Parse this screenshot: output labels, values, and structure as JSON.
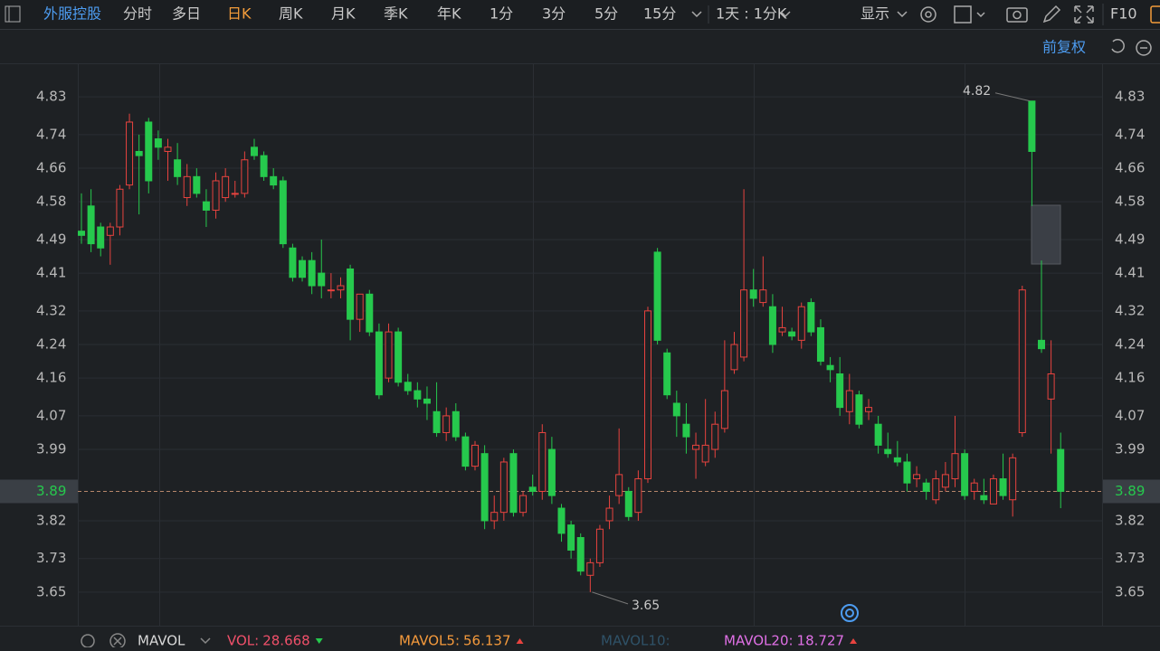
{
  "toolbar": {
    "stock": "外服控股",
    "tabs": [
      "分时",
      "多日",
      "日K",
      "周K",
      "月K",
      "季K",
      "年K",
      "1分",
      "3分",
      "5分",
      "15分"
    ],
    "interval": "1天 : 1分K",
    "display": "显示",
    "f10": "F10",
    "adjust": "前复权"
  },
  "chart_data": {
    "type": "candlestick",
    "open": [
      4.51,
      4.57,
      4.52,
      4.5,
      4.52,
      4.62,
      4.7,
      4.77,
      4.73,
      4.7,
      4.68,
      4.59,
      4.64,
      4.58,
      4.56,
      4.59,
      4.6,
      4.6,
      4.71,
      4.69,
      4.64,
      4.63,
      4.47,
      4.44,
      4.44,
      4.41,
      4.37,
      4.37,
      4.42,
      4.3,
      4.36,
      4.27,
      4.16,
      4.27,
      4.15,
      4.13,
      4.11,
      4.08,
      4.03,
      4.08,
      4.02,
      3.95,
      3.98,
      3.82,
      3.84,
      3.98,
      3.84,
      3.9,
      3.89,
      3.99,
      3.85,
      3.81,
      3.78,
      3.69,
      3.72,
      3.82,
      3.88,
      3.89,
      3.84,
      3.92,
      4.46,
      4.22,
      4.1,
      4.05,
      3.99,
      3.96,
      3.99,
      4.04,
      4.18,
      4.21,
      4.37,
      4.34,
      4.33,
      4.27,
      4.27,
      4.25,
      4.34,
      4.28,
      4.19,
      4.17,
      4.08,
      4.12,
      4.08,
      4.05,
      3.99,
      3.97,
      3.96,
      3.92,
      3.91,
      3.87,
      3.9,
      3.92,
      3.98,
      3.89,
      3.88,
      3.86,
      3.92,
      3.87,
      4.03,
      4.82,
      4.25,
      4.11,
      3.99
    ],
    "high": [
      4.6,
      4.61,
      4.53,
      4.53,
      4.62,
      4.79,
      4.74,
      4.78,
      4.75,
      4.73,
      4.72,
      4.67,
      4.66,
      4.61,
      4.65,
      4.66,
      4.63,
      4.7,
      4.73,
      4.7,
      4.66,
      4.64,
      4.48,
      4.45,
      4.46,
      4.49,
      4.41,
      4.4,
      4.43,
      4.36,
      4.37,
      4.29,
      4.29,
      4.28,
      4.17,
      4.15,
      4.14,
      4.15,
      4.09,
      4.1,
      4.03,
      4.01,
      4.0,
      3.88,
      3.97,
      3.99,
      3.89,
      3.93,
      4.05,
      4.02,
      3.86,
      3.82,
      3.79,
      3.73,
      3.81,
      3.88,
      4.04,
      3.9,
      3.94,
      4.33,
      4.47,
      4.23,
      4.13,
      4.1,
      4.03,
      4.11,
      4.08,
      4.25,
      4.27,
      4.61,
      4.42,
      4.45,
      4.36,
      4.33,
      4.28,
      4.34,
      4.35,
      4.3,
      4.21,
      4.21,
      4.17,
      4.13,
      4.11,
      4.07,
      4.03,
      4.01,
      3.98,
      3.95,
      3.92,
      3.94,
      3.96,
      4.07,
      3.99,
      3.92,
      3.92,
      3.93,
      3.98,
      3.98,
      4.38,
      4.82,
      4.44,
      4.25,
      4.03
    ],
    "low": [
      4.48,
      4.46,
      4.45,
      4.43,
      4.5,
      4.61,
      4.55,
      4.6,
      4.68,
      4.63,
      4.62,
      4.57,
      4.59,
      4.52,
      4.54,
      4.58,
      4.59,
      4.59,
      4.68,
      4.63,
      4.61,
      4.47,
      4.39,
      4.39,
      4.36,
      4.35,
      4.35,
      4.35,
      4.25,
      4.27,
      4.26,
      4.11,
      4.15,
      4.14,
      4.12,
      4.09,
      4.06,
      4.02,
      4.01,
      4.01,
      3.94,
      3.94,
      3.8,
      3.8,
      3.82,
      3.83,
      3.83,
      3.88,
      3.87,
      3.86,
      3.77,
      3.73,
      3.69,
      3.65,
      3.71,
      3.8,
      3.86,
      3.82,
      3.82,
      3.91,
      4.24,
      4.11,
      4.02,
      3.98,
      3.92,
      3.95,
      3.97,
      4.03,
      4.17,
      4.2,
      4.33,
      4.33,
      4.22,
      4.26,
      4.25,
      4.23,
      4.26,
      4.19,
      4.15,
      4.07,
      4.05,
      4.04,
      4.06,
      3.98,
      3.97,
      3.95,
      3.89,
      3.9,
      3.87,
      3.86,
      3.89,
      3.9,
      3.87,
      3.87,
      3.86,
      3.86,
      3.87,
      3.83,
      4.02,
      4.57,
      4.22,
      3.98,
      3.85
    ],
    "close": [
      4.5,
      4.48,
      4.47,
      4.52,
      4.61,
      4.77,
      4.69,
      4.63,
      4.71,
      4.71,
      4.64,
      4.64,
      4.6,
      4.56,
      4.63,
      4.64,
      4.6,
      4.68,
      4.69,
      4.64,
      4.62,
      4.48,
      4.4,
      4.4,
      4.38,
      4.38,
      4.37,
      4.38,
      4.3,
      4.36,
      4.27,
      4.12,
      4.27,
      4.15,
      4.13,
      4.11,
      4.1,
      4.03,
      4.07,
      4.02,
      3.95,
      4.0,
      3.82,
      3.84,
      3.96,
      3.84,
      3.88,
      3.89,
      4.03,
      3.88,
      3.79,
      3.75,
      3.7,
      3.72,
      3.8,
      3.85,
      3.93,
      3.83,
      3.92,
      4.32,
      4.25,
      4.12,
      4.07,
      4.02,
      4.0,
      4.0,
      4.05,
      4.13,
      4.24,
      4.37,
      4.35,
      4.37,
      4.24,
      4.28,
      4.26,
      4.33,
      4.27,
      4.2,
      4.18,
      4.09,
      4.13,
      4.05,
      4.09,
      4.0,
      3.98,
      3.96,
      3.91,
      3.93,
      3.89,
      3.92,
      3.93,
      3.98,
      3.88,
      3.91,
      3.87,
      3.92,
      3.88,
      3.97,
      4.37,
      4.7,
      4.23,
      4.17,
      3.89
    ],
    "up_color": "#e8433f",
    "down_color": "#26c94d",
    "ylim": [
      3.57,
      4.91
    ],
    "yticks": [
      4.83,
      4.74,
      4.66,
      4.58,
      4.49,
      4.41,
      4.32,
      4.24,
      4.16,
      4.07,
      3.99,
      3.82,
      3.73,
      3.65
    ],
    "grid": true,
    "last_price": 3.89,
    "max_price": 4.82,
    "min_price": 3.65
  },
  "indicators": {
    "name": "MAVOL",
    "items": [
      {
        "label": "VOL:",
        "value": 28.668,
        "color": "#f0506a"
      },
      {
        "label": "MAVOL5:",
        "value": 56.137,
        "color": "#f59a3c"
      },
      {
        "label": "MAVOL10:",
        "color": "#2f5268"
      },
      {
        "label": "MAVOL20:",
        "value": 18.727,
        "color": "#e070e6"
      }
    ]
  }
}
